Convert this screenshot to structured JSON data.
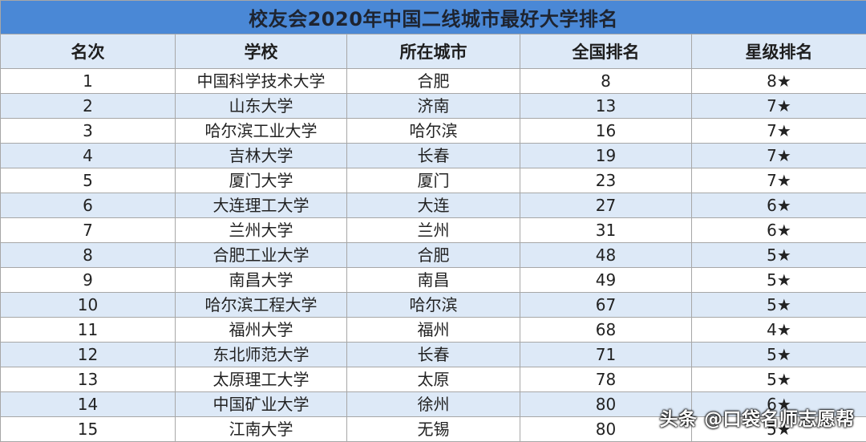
{
  "title": "校友会2020年中国二线城市最好大学排名",
  "headers": [
    "名次",
    "学校",
    "所在城市",
    "全国排名",
    "星级排名"
  ],
  "rows": [
    {
      "rank": "1",
      "school": "中国科学技术大学",
      "city": "合肥",
      "national": "8",
      "stars": "8★"
    },
    {
      "rank": "2",
      "school": "山东大学",
      "city": "济南",
      "national": "13",
      "stars": "7★"
    },
    {
      "rank": "3",
      "school": "哈尔滨工业大学",
      "city": "哈尔滨",
      "national": "16",
      "stars": "7★"
    },
    {
      "rank": "4",
      "school": "吉林大学",
      "city": "长春",
      "national": "19",
      "stars": "7★"
    },
    {
      "rank": "5",
      "school": "厦门大学",
      "city": "厦门",
      "national": "23",
      "stars": "7★"
    },
    {
      "rank": "6",
      "school": "大连理工大学",
      "city": "大连",
      "national": "27",
      "stars": "6★"
    },
    {
      "rank": "7",
      "school": "兰州大学",
      "city": "兰州",
      "national": "31",
      "stars": "6★"
    },
    {
      "rank": "8",
      "school": "合肥工业大学",
      "city": "合肥",
      "national": "48",
      "stars": "5★"
    },
    {
      "rank": "9",
      "school": "南昌大学",
      "city": "南昌",
      "national": "49",
      "stars": "5★"
    },
    {
      "rank": "10",
      "school": "哈尔滨工程大学",
      "city": "哈尔滨",
      "national": "67",
      "stars": "5★"
    },
    {
      "rank": "11",
      "school": "福州大学",
      "city": "福州",
      "national": "68",
      "stars": "4★"
    },
    {
      "rank": "12",
      "school": "东北师范大学",
      "city": "长春",
      "national": "71",
      "stars": "5★"
    },
    {
      "rank": "13",
      "school": "太原理工大学",
      "city": "太原",
      "national": "78",
      "stars": "5★"
    },
    {
      "rank": "14",
      "school": "中国矿业大学",
      "city": "徐州",
      "national": "80",
      "stars": "6★"
    },
    {
      "rank": "15",
      "school": "江南大学",
      "city": "无锡",
      "national": "80",
      "stars": "5★"
    }
  ],
  "watermark": "头条 @口袋名师志愿帮",
  "colors": {
    "title_bg": "#4a88d6",
    "band_bg": "#dde9f7",
    "border": "#a7a7a7"
  }
}
